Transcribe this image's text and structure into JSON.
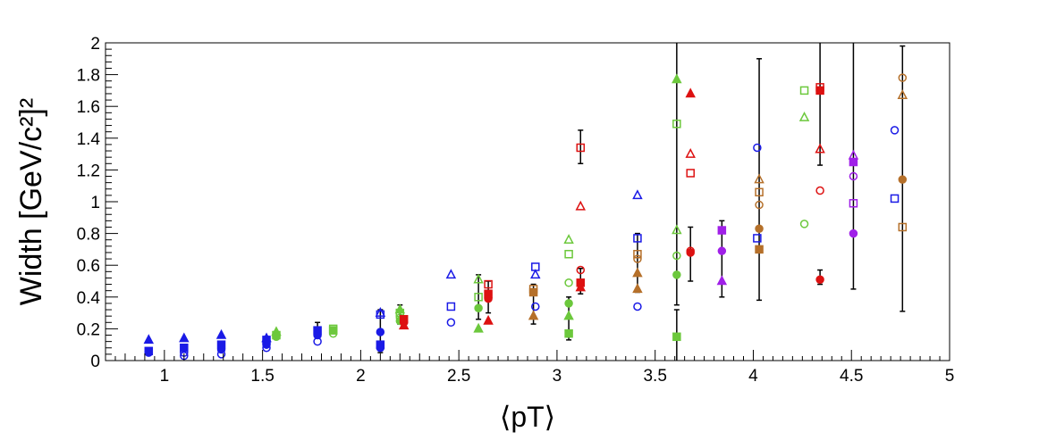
{
  "chart_data": {
    "type": "scatter",
    "title": "",
    "xlabel": "⟨pT⟩",
    "ylabel": "Width [GeV/c²]²",
    "xlim": [
      0.7,
      5.0
    ],
    "ylim": [
      0,
      2.0
    ],
    "grid": false,
    "x_ticks": [
      1,
      1.5,
      2,
      2.5,
      3,
      3.5,
      4,
      4.5,
      5
    ],
    "x_tick_labels": [
      "1",
      "1.5",
      "2",
      "2.5",
      "3",
      "3.5",
      "4",
      "4.5",
      "5"
    ],
    "y_ticks": [
      0,
      0.2,
      0.4,
      0.6,
      0.8,
      1.0,
      1.2,
      1.4,
      1.6,
      1.8,
      2.0
    ],
    "y_tick_labels": [
      "0",
      "0.2",
      "0.4",
      "0.6",
      "0.8",
      "1",
      "1.2",
      "1.4",
      "1.6",
      "1.8",
      "2"
    ],
    "colors": {
      "blue": "#1a1ae6",
      "green": "#6cc83c",
      "red": "#dd1111",
      "brown": "#b5702a",
      "purple": "#a020e8"
    },
    "series": [
      {
        "color": "blue",
        "points": [
          {
            "x": 0.92,
            "y": 0.13,
            "m": "tf"
          },
          {
            "x": 0.92,
            "y": 0.05,
            "m": "cf"
          },
          {
            "x": 0.92,
            "y": 0.06,
            "m": "sf"
          },
          {
            "x": 1.1,
            "y": 0.14,
            "m": "tf"
          },
          {
            "x": 1.1,
            "y": 0.08,
            "m": "sf"
          },
          {
            "x": 1.1,
            "y": 0.05,
            "m": "co"
          },
          {
            "x": 1.1,
            "y": 0.03,
            "m": "co"
          },
          {
            "x": 1.29,
            "y": 0.16,
            "m": "tf"
          },
          {
            "x": 1.29,
            "y": 0.1,
            "m": "sf"
          },
          {
            "x": 1.29,
            "y": 0.07,
            "m": "cf"
          },
          {
            "x": 1.29,
            "y": 0.04,
            "m": "co"
          },
          {
            "x": 1.52,
            "y": 0.14,
            "m": "tf"
          },
          {
            "x": 1.52,
            "y": 0.13,
            "m": "sf"
          },
          {
            "x": 1.52,
            "y": 0.1,
            "m": "cf"
          },
          {
            "x": 1.52,
            "y": 0.08,
            "m": "co"
          },
          {
            "x": 1.78,
            "y": 0.19,
            "m": "sf"
          },
          {
            "x": 1.78,
            "y": 0.16,
            "m": "cf"
          },
          {
            "x": 1.78,
            "y": 0.12,
            "m": "co"
          },
          {
            "x": 2.1,
            "y": 0.3,
            "m": "to"
          },
          {
            "x": 2.1,
            "y": 0.29,
            "m": "so"
          },
          {
            "x": 2.1,
            "y": 0.18,
            "m": "cf"
          },
          {
            "x": 2.1,
            "y": 0.1,
            "m": "sf"
          },
          {
            "x": 2.1,
            "y": 0.08,
            "m": "cf"
          },
          {
            "x": 2.46,
            "y": 0.54,
            "m": "to"
          },
          {
            "x": 2.46,
            "y": 0.34,
            "m": "so"
          },
          {
            "x": 2.46,
            "y": 0.24,
            "m": "co"
          },
          {
            "x": 2.89,
            "y": 0.59,
            "m": "so"
          },
          {
            "x": 2.89,
            "y": 0.54,
            "m": "to"
          },
          {
            "x": 2.89,
            "y": 0.34,
            "m": "co"
          },
          {
            "x": 3.41,
            "y": 1.04,
            "m": "to"
          },
          {
            "x": 3.41,
            "y": 0.77,
            "m": "so"
          },
          {
            "x": 3.41,
            "y": 0.34,
            "m": "co"
          },
          {
            "x": 4.02,
            "y": 1.34,
            "m": "co"
          },
          {
            "x": 4.02,
            "y": 0.77,
            "m": "so"
          },
          {
            "x": 4.72,
            "y": 1.45,
            "m": "co"
          },
          {
            "x": 4.72,
            "y": 1.02,
            "m": "so"
          }
        ]
      },
      {
        "color": "green",
        "points": [
          {
            "x": 1.57,
            "y": 0.18,
            "m": "tf"
          },
          {
            "x": 1.57,
            "y": 0.16,
            "m": "sf"
          },
          {
            "x": 1.57,
            "y": 0.15,
            "m": "cf"
          },
          {
            "x": 1.86,
            "y": 0.2,
            "m": "so"
          },
          {
            "x": 1.86,
            "y": 0.19,
            "m": "sf"
          },
          {
            "x": 1.86,
            "y": 0.17,
            "m": "co"
          },
          {
            "x": 2.2,
            "y": 0.32,
            "m": "tf"
          },
          {
            "x": 2.2,
            "y": 0.3,
            "m": "so"
          },
          {
            "x": 2.2,
            "y": 0.27,
            "m": "co"
          },
          {
            "x": 2.2,
            "y": 0.25,
            "m": "cf"
          },
          {
            "x": 2.6,
            "y": 0.51,
            "m": "to"
          },
          {
            "x": 2.6,
            "y": 0.4,
            "m": "so"
          },
          {
            "x": 2.6,
            "y": 0.33,
            "m": "cf"
          },
          {
            "x": 2.6,
            "y": 0.2,
            "m": "tf"
          },
          {
            "x": 3.06,
            "y": 0.76,
            "m": "to"
          },
          {
            "x": 3.06,
            "y": 0.67,
            "m": "so"
          },
          {
            "x": 3.06,
            "y": 0.49,
            "m": "co"
          },
          {
            "x": 3.06,
            "y": 0.36,
            "m": "cf"
          },
          {
            "x": 3.06,
            "y": 0.28,
            "m": "tf"
          },
          {
            "x": 3.06,
            "y": 0.17,
            "m": "sf"
          },
          {
            "x": 3.61,
            "y": 1.77,
            "m": "tf"
          },
          {
            "x": 3.61,
            "y": 1.49,
            "m": "so"
          },
          {
            "x": 3.61,
            "y": 0.82,
            "m": "to"
          },
          {
            "x": 3.61,
            "y": 0.66,
            "m": "co"
          },
          {
            "x": 3.61,
            "y": 0.54,
            "m": "cf"
          },
          {
            "x": 3.61,
            "y": 0.15,
            "m": "sf"
          },
          {
            "x": 4.26,
            "y": 1.7,
            "m": "so"
          },
          {
            "x": 4.26,
            "y": 1.53,
            "m": "to"
          },
          {
            "x": 4.26,
            "y": 0.86,
            "m": "co"
          }
        ]
      },
      {
        "color": "red",
        "points": [
          {
            "x": 2.22,
            "y": 0.26,
            "m": "sf"
          },
          {
            "x": 2.22,
            "y": 0.24,
            "m": "cf"
          },
          {
            "x": 2.22,
            "y": 0.22,
            "m": "tf"
          },
          {
            "x": 2.65,
            "y": 0.48,
            "m": "so"
          },
          {
            "x": 2.65,
            "y": 0.42,
            "m": "sf"
          },
          {
            "x": 2.65,
            "y": 0.39,
            "m": "cf"
          },
          {
            "x": 2.65,
            "y": 0.25,
            "m": "tf"
          },
          {
            "x": 3.12,
            "y": 1.34,
            "m": "so"
          },
          {
            "x": 3.12,
            "y": 0.97,
            "m": "to"
          },
          {
            "x": 3.12,
            "y": 0.57,
            "m": "co"
          },
          {
            "x": 3.12,
            "y": 0.49,
            "m": "sf"
          },
          {
            "x": 3.12,
            "y": 0.46,
            "m": "tf"
          },
          {
            "x": 3.68,
            "y": 1.68,
            "m": "tf"
          },
          {
            "x": 3.68,
            "y": 1.3,
            "m": "to"
          },
          {
            "x": 3.68,
            "y": 1.18,
            "m": "so"
          },
          {
            "x": 3.68,
            "y": 0.69,
            "m": "co"
          },
          {
            "x": 3.68,
            "y": 0.68,
            "m": "cf"
          },
          {
            "x": 4.34,
            "y": 1.72,
            "m": "so"
          },
          {
            "x": 4.34,
            "y": 1.7,
            "m": "sf"
          },
          {
            "x": 4.34,
            "y": 1.33,
            "m": "to"
          },
          {
            "x": 4.34,
            "y": 1.07,
            "m": "co"
          },
          {
            "x": 4.34,
            "y": 0.51,
            "m": "cf"
          }
        ]
      },
      {
        "color": "brown",
        "points": [
          {
            "x": 2.88,
            "y": 0.45,
            "m": "so"
          },
          {
            "x": 2.88,
            "y": 0.43,
            "m": "sf"
          },
          {
            "x": 2.88,
            "y": 0.28,
            "m": "tf"
          },
          {
            "x": 3.41,
            "y": 0.67,
            "m": "so"
          },
          {
            "x": 3.41,
            "y": 0.64,
            "m": "co"
          },
          {
            "x": 3.41,
            "y": 0.55,
            "m": "tf"
          },
          {
            "x": 3.41,
            "y": 0.45,
            "m": "tf"
          },
          {
            "x": 4.03,
            "y": 1.14,
            "m": "to"
          },
          {
            "x": 4.03,
            "y": 1.06,
            "m": "so"
          },
          {
            "x": 4.03,
            "y": 0.98,
            "m": "co"
          },
          {
            "x": 4.03,
            "y": 0.83,
            "m": "cf"
          },
          {
            "x": 4.03,
            "y": 0.7,
            "m": "sf"
          },
          {
            "x": 4.76,
            "y": 1.78,
            "m": "co"
          },
          {
            "x": 4.76,
            "y": 1.67,
            "m": "to"
          },
          {
            "x": 4.76,
            "y": 1.14,
            "m": "cf"
          },
          {
            "x": 4.76,
            "y": 0.84,
            "m": "so"
          }
        ]
      },
      {
        "color": "purple",
        "points": [
          {
            "x": 3.84,
            "y": 0.82,
            "m": "sf"
          },
          {
            "x": 3.84,
            "y": 0.69,
            "m": "cf"
          },
          {
            "x": 3.84,
            "y": 0.5,
            "m": "tf"
          },
          {
            "x": 4.51,
            "y": 1.29,
            "m": "to"
          },
          {
            "x": 4.51,
            "y": 1.25,
            "m": "sf"
          },
          {
            "x": 4.51,
            "y": 1.16,
            "m": "co"
          },
          {
            "x": 4.51,
            "y": 0.99,
            "m": "so"
          },
          {
            "x": 4.51,
            "y": 0.8,
            "m": "cf"
          }
        ]
      }
    ],
    "error_bars": [
      {
        "x": 1.78,
        "lo": 0.14,
        "hi": 0.24
      },
      {
        "x": 2.1,
        "lo": 0.05,
        "hi": 0.32
      },
      {
        "x": 2.2,
        "lo": 0.23,
        "hi": 0.35
      },
      {
        "x": 2.6,
        "lo": 0.26,
        "hi": 0.54
      },
      {
        "x": 2.65,
        "lo": 0.3,
        "hi": 0.5
      },
      {
        "x": 2.88,
        "lo": 0.23,
        "hi": 0.48
      },
      {
        "x": 3.06,
        "lo": 0.13,
        "hi": 0.4
      },
      {
        "x": 3.12,
        "lo": 0.42,
        "hi": 0.58
      },
      {
        "x": 3.12,
        "lo": 1.24,
        "hi": 1.45
      },
      {
        "x": 3.41,
        "lo": 0.43,
        "hi": 0.8
      },
      {
        "x": 3.61,
        "lo": 0.0,
        "hi": 0.32
      },
      {
        "x": 3.61,
        "lo": 0.35,
        "hi": 2.0
      },
      {
        "x": 3.68,
        "lo": 0.5,
        "hi": 0.84
      },
      {
        "x": 3.84,
        "lo": 0.4,
        "hi": 0.88
      },
      {
        "x": 4.03,
        "lo": 0.38,
        "hi": 1.9
      },
      {
        "x": 4.34,
        "lo": 0.48,
        "hi": 0.57
      },
      {
        "x": 4.34,
        "lo": 1.23,
        "hi": 2.0
      },
      {
        "x": 4.51,
        "lo": 0.45,
        "hi": 2.0
      },
      {
        "x": 4.76,
        "lo": 0.31,
        "hi": 1.98
      }
    ]
  }
}
